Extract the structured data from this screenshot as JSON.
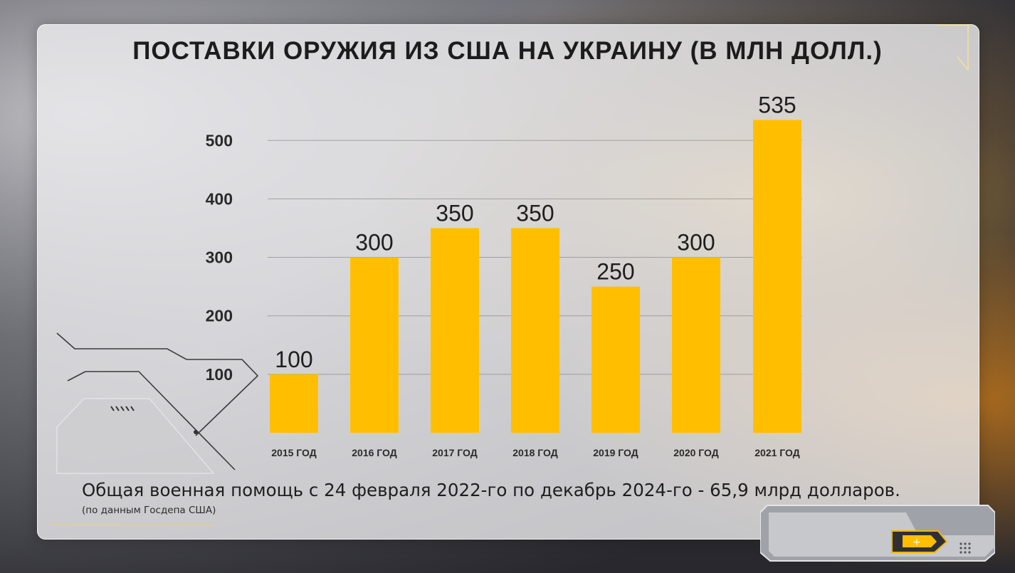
{
  "chart_data": {
    "type": "bar",
    "title": "ПОСТАВКИ ОРУЖИЯ ИЗ США НА УКРАИНУ (В МЛН ДОЛЛ.)",
    "categories": [
      "2015 ГОД",
      "2016 ГОД",
      "2017 ГОД",
      "2018 ГОД",
      "2019 ГОД",
      "2020 ГОД",
      "2021 ГОД"
    ],
    "values": [
      100,
      300,
      350,
      350,
      250,
      300,
      535
    ],
    "value_labels": [
      "100",
      "300",
      "350",
      "350",
      "250",
      "300",
      "535"
    ],
    "yticks": [
      "100",
      "200",
      "300",
      "400",
      "500"
    ],
    "ylim": [
      0,
      560
    ],
    "grid": true,
    "bar_color": "#ffbf00"
  },
  "footnote": "Общая военная помощь с 24 февраля 2022-го по декабрь 2024-го - 65,9 млрд долларов.",
  "source": "(по данным Госдепа США)"
}
